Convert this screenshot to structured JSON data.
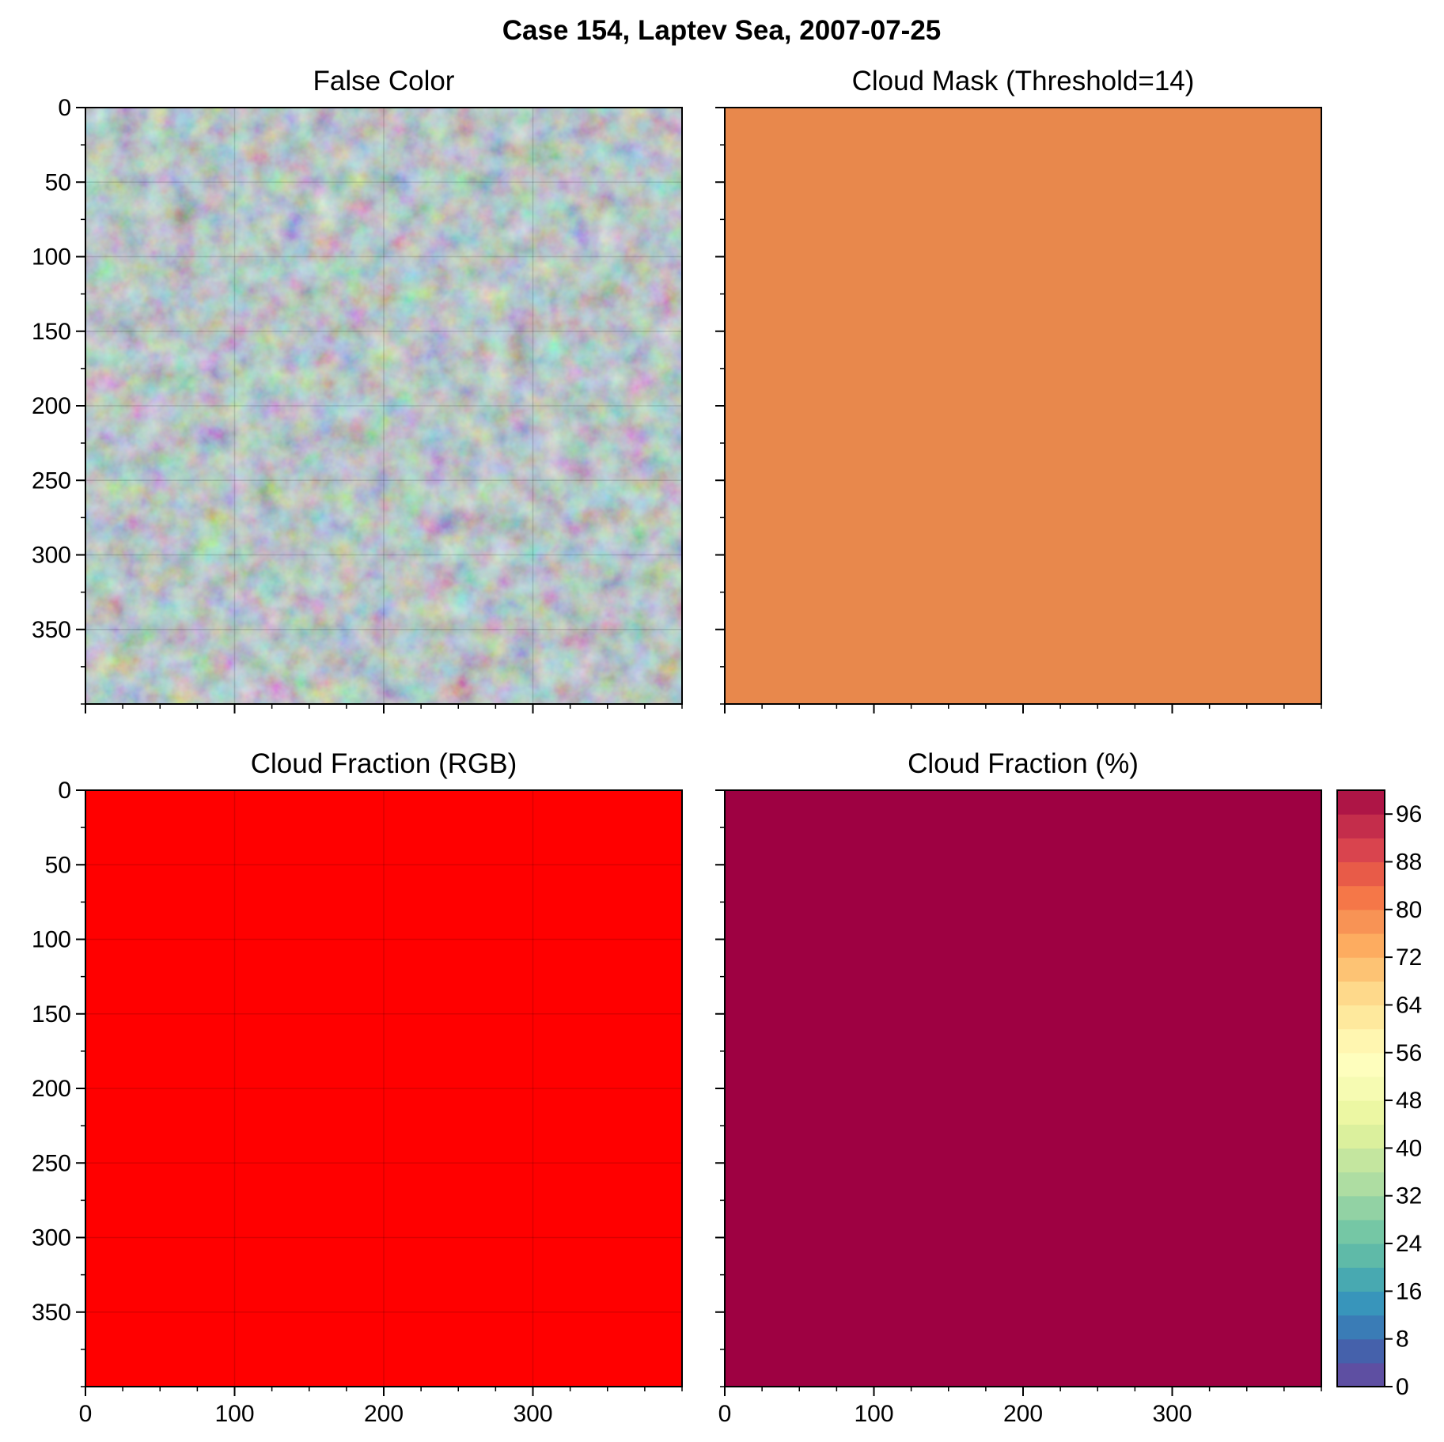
{
  "title": "Case 154, Laptev Sea, 2007-07-25",
  "chart_data": [
    {
      "type": "heatmap",
      "title": "False Color",
      "xlim": [
        0,
        400
      ],
      "ylim": [
        400,
        0
      ],
      "yticks": [
        0,
        50,
        100,
        150,
        200,
        250,
        300,
        350
      ],
      "xticks": [
        0,
        100,
        200,
        300
      ],
      "show_ytick_labels": true,
      "show_xtick_labels": false,
      "grid": true,
      "render": "false-color-image",
      "colors": {
        "base": "#a9dde0",
        "bright": "#6ee3ea",
        "dark": "#4f9ea8"
      }
    },
    {
      "type": "heatmap",
      "title": "Cloud Mask (Threshold=14)",
      "xlim": [
        0,
        400
      ],
      "ylim": [
        400,
        0
      ],
      "yticks": [
        0,
        50,
        100,
        150,
        200,
        250,
        300,
        350
      ],
      "xticks": [
        0,
        100,
        200,
        300
      ],
      "show_ytick_labels": false,
      "show_xtick_labels": false,
      "grid": false,
      "render": "solid",
      "fill": "#e8884c"
    },
    {
      "type": "heatmap",
      "title": "Cloud Fraction (RGB)",
      "xlim": [
        0,
        400
      ],
      "ylim": [
        400,
        0
      ],
      "yticks": [
        0,
        50,
        100,
        150,
        200,
        250,
        300,
        350
      ],
      "xticks": [
        0,
        100,
        200,
        300
      ],
      "show_ytick_labels": true,
      "show_xtick_labels": true,
      "grid": true,
      "render": "solid",
      "fill": "#ff0000"
    },
    {
      "type": "heatmap",
      "title": "Cloud Fraction (%)",
      "xlim": [
        0,
        400
      ],
      "ylim": [
        400,
        0
      ],
      "yticks": [
        0,
        50,
        100,
        150,
        200,
        250,
        300,
        350
      ],
      "xticks": [
        0,
        100,
        200,
        300
      ],
      "show_ytick_labels": false,
      "show_xtick_labels": true,
      "grid": false,
      "render": "solid",
      "fill": "#9e0142",
      "value": 100
    }
  ],
  "colorbar": {
    "range": [
      0,
      100
    ],
    "levels": 25,
    "ticks": [
      0,
      8,
      16,
      24,
      32,
      40,
      48,
      56,
      64,
      72,
      80,
      88,
      96
    ],
    "colors": [
      "#5e4fa2",
      "#4561ab",
      "#3a7cb6",
      "#3895bb",
      "#48a9b1",
      "#5fbaa8",
      "#75c7a5",
      "#92d2a4",
      "#aedda2",
      "#c4e69f",
      "#dbf09d",
      "#ecf7a3",
      "#f6fbb2",
      "#fefebd",
      "#fff6b0",
      "#fee99d",
      "#fed98b",
      "#fdc374",
      "#fdac60",
      "#f89355",
      "#f57748",
      "#e85b48",
      "#d9444e",
      "#c42d4b",
      "#ae1546"
    ]
  }
}
